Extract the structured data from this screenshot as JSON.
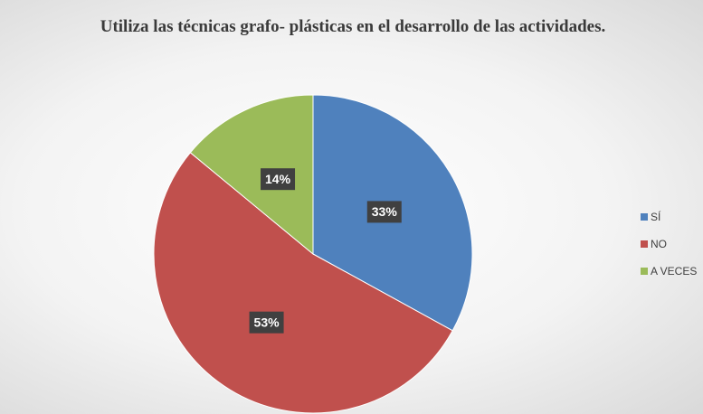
{
  "chart_data": {
    "type": "pie",
    "title": "Utiliza las técnicas grafo- plásticas en el desarrollo de las actividades.",
    "categories": [
      "SÍ",
      "NO",
      "A VECES"
    ],
    "values": [
      33,
      53,
      14
    ],
    "value_labels": [
      "33%",
      "53%",
      "14%"
    ],
    "colors": [
      "#4f81bd",
      "#c0504d",
      "#9bbb59"
    ],
    "legend": "right"
  }
}
